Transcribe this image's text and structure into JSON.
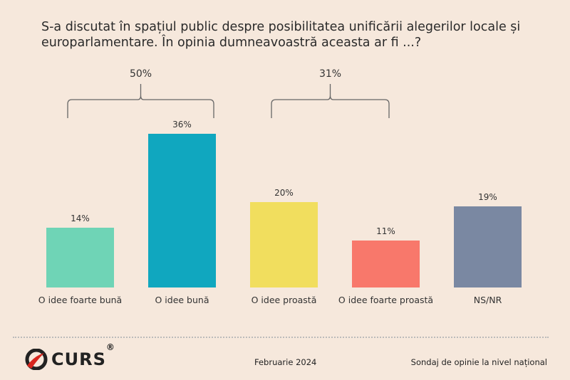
{
  "chart_data": {
    "type": "bar",
    "title": "S-a discutat în spațiul public despre posibilitatea unificării alegerilor locale și europarlamentare. În opinia dumneavoastră aceasta ar fi ...?",
    "categories": [
      "O idee foarte bună",
      "O idee bună",
      "O idee proastă",
      "O idee foarte proastă",
      "NS/NR"
    ],
    "values": [
      14,
      36,
      20,
      11,
      19
    ],
    "data_labels": [
      "14%",
      "36%",
      "20%",
      "11%",
      "19%"
    ],
    "colors": [
      "#6fd4b6",
      "#10a7bf",
      "#f1de5e",
      "#f8786b",
      "#7a88a2"
    ],
    "groups": [
      {
        "label": "50%",
        "categories": [
          "O idee foarte bună",
          "O idee bună"
        ]
      },
      {
        "label": "31%",
        "categories": [
          "O idee proastă",
          "O idee foarte proastă"
        ]
      }
    ],
    "ylim": [
      0,
      40
    ],
    "grid": false
  },
  "footer": {
    "logo": "CURS",
    "logo_mark": "®",
    "date": "Februarie 2024",
    "source": "Sondaj de opinie la nivel național"
  }
}
